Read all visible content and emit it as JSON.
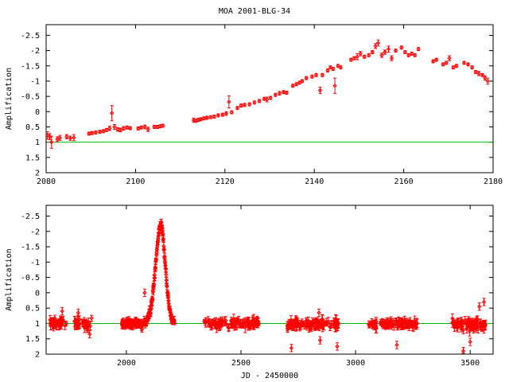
{
  "figure": {
    "title": "MOA 2001-BLG-34"
  },
  "colors": {
    "data": "#ff0000",
    "baseline": "#00bb00",
    "axes": "#000000"
  },
  "chart_data": [
    {
      "type": "scatter",
      "title": "MOA 2001-BLG-34",
      "xlabel": "",
      "ylabel": "Amplification",
      "xlim": [
        2080,
        2180
      ],
      "ylim": [
        2,
        -2.85
      ],
      "y_inverted": true,
      "xticks": [
        2080,
        2100,
        2120,
        2140,
        2160,
        2180
      ],
      "xtick_labels": [
        "2080",
        "2100",
        "2120",
        "2140",
        "2160",
        "2180"
      ],
      "yticks": [
        -2.5,
        -2,
        -1.5,
        -1,
        -0.5,
        0,
        0.5,
        1,
        1.5,
        2
      ],
      "ytick_labels": [
        "-2.5",
        "-2",
        "-1.5",
        "-1",
        "-0.5",
        "0",
        "0.5",
        "1",
        "1.5",
        "2"
      ],
      "baseline": 1,
      "grid": false,
      "series": [
        {
          "x": [
            2080.3,
            2080.8,
            2081.2,
            2082.5,
            2083.1,
            2084.6,
            2085.4,
            2086.2,
            2089.6,
            2090.3,
            2091.1,
            2092.0,
            2092.8,
            2093.5,
            2094.2,
            2094.7,
            2095.3,
            2096.0,
            2096.6,
            2097.3,
            2098.1,
            2098.8,
            2100.6,
            2101.3,
            2102.1,
            2102.8,
            2104.2,
            2104.9,
            2105.5,
            2106.1,
            2113.0,
            2113.5,
            2114.0,
            2114.6,
            2115.3,
            2116.0,
            2116.8,
            2117.6,
            2118.5,
            2119.5,
            2120.3,
            2120.9,
            2121.5,
            2122.8,
            2123.6,
            2124.4,
            2125.5,
            2126.6,
            2127.7,
            2128.8,
            2129.4,
            2130.2,
            2131.3,
            2132.2,
            2133.1,
            2133.8,
            2135.2,
            2136.0,
            2136.7,
            2137.3,
            2138.2,
            2139.5,
            2140.4,
            2141.3,
            2141.8,
            2143.0,
            2143.6,
            2144.2,
            2144.6,
            2145.3,
            2145.9,
            2148.2,
            2148.9,
            2149.6,
            2150.3,
            2151.2,
            2152.2,
            2153.0,
            2153.7,
            2154.3,
            2155.1,
            2155.8,
            2156.6,
            2157.3,
            2158.2,
            2159.5,
            2160.3,
            2161.1,
            2161.8,
            2162.5,
            2163.3,
            2166.6,
            2167.3,
            2168.8,
            2169.5,
            2170.2,
            2171.1,
            2171.8,
            2173.5,
            2174.4,
            2175.3,
            2176.1,
            2176.8,
            2177.6,
            2178.2,
            2178.8
          ],
          "y": [
            0.78,
            0.82,
            1.0,
            0.9,
            0.86,
            0.82,
            0.87,
            0.85,
            0.72,
            0.7,
            0.68,
            0.66,
            0.64,
            0.6,
            0.55,
            0.05,
            0.5,
            0.58,
            0.6,
            0.55,
            0.52,
            0.54,
            0.55,
            0.52,
            0.5,
            0.58,
            0.5,
            0.5,
            0.48,
            0.46,
            0.28,
            0.3,
            0.27,
            0.25,
            0.22,
            0.2,
            0.18,
            0.16,
            0.12,
            0.1,
            0.06,
            -0.32,
            0.02,
            -0.12,
            -0.2,
            -0.22,
            -0.24,
            -0.3,
            -0.35,
            -0.42,
            -0.4,
            -0.45,
            -0.55,
            -0.6,
            -0.64,
            -0.62,
            -0.85,
            -0.9,
            -0.95,
            -1.0,
            -1.1,
            -1.15,
            -1.2,
            -0.7,
            -1.2,
            -1.35,
            -1.45,
            -1.4,
            -0.85,
            -1.5,
            -1.45,
            -1.7,
            -1.75,
            -1.8,
            -1.9,
            -1.8,
            -1.85,
            -1.95,
            -2.15,
            -2.25,
            -1.85,
            -1.95,
            -2.05,
            -1.75,
            -2.0,
            -2.1,
            -1.95,
            -1.85,
            -1.9,
            -1.85,
            -2.05,
            -1.65,
            -1.7,
            -1.55,
            -1.6,
            -1.75,
            -1.45,
            -1.5,
            -1.6,
            -1.55,
            -1.45,
            -1.3,
            -1.25,
            -1.2,
            -1.1,
            -1.0
          ],
          "err": [
            0.12,
            0.1,
            0.2,
            0.08,
            0.08,
            0.07,
            0.07,
            0.1,
            0.05,
            0.05,
            0.05,
            0.05,
            0.05,
            0.05,
            0.07,
            0.25,
            0.08,
            0.06,
            0.06,
            0.06,
            0.05,
            0.05,
            0.05,
            0.05,
            0.06,
            0.07,
            0.05,
            0.05,
            0.05,
            0.05,
            0.07,
            0.05,
            0.05,
            0.05,
            0.05,
            0.05,
            0.05,
            0.05,
            0.05,
            0.05,
            0.06,
            0.2,
            0.05,
            0.05,
            0.05,
            0.05,
            0.05,
            0.05,
            0.05,
            0.05,
            0.08,
            0.05,
            0.05,
            0.06,
            0.05,
            0.05,
            0.05,
            0.05,
            0.05,
            0.05,
            0.05,
            0.05,
            0.05,
            0.1,
            0.05,
            0.05,
            0.05,
            0.05,
            0.25,
            0.05,
            0.05,
            0.05,
            0.05,
            0.1,
            0.07,
            0.05,
            0.05,
            0.05,
            0.08,
            0.1,
            0.07,
            0.07,
            0.1,
            0.08,
            0.05,
            0.05,
            0.05,
            0.05,
            0.05,
            0.05,
            0.05,
            0.05,
            0.05,
            0.05,
            0.05,
            0.08,
            0.05,
            0.05,
            0.05,
            0.05,
            0.05,
            0.05,
            0.07,
            0.05,
            0.07,
            0.1
          ]
        }
      ]
    },
    {
      "type": "scatter",
      "title": "",
      "xlabel": "JD - 2450000",
      "ylabel": "Amplification",
      "xlim": [
        1650,
        3600
      ],
      "ylim": [
        2,
        -2.85
      ],
      "y_inverted": true,
      "xticks": [
        2000,
        2500,
        3000,
        3500
      ],
      "xtick_labels": [
        "2000",
        "2500",
        "3000",
        "3500"
      ],
      "yticks": [
        -2.5,
        -2,
        -1.5,
        -1,
        -0.5,
        0,
        0.5,
        1,
        1.5,
        2
      ],
      "ytick_labels": [
        "-2.5",
        "-2",
        "-1.5",
        "-1",
        "-0.5",
        "0",
        "0.5",
        "1",
        "1.5",
        "2"
      ],
      "baseline": 1,
      "grid": false,
      "seasons": [
        {
          "x_range": [
            1660,
            1740
          ],
          "points": 40,
          "center": 1.0,
          "scatter": 0.12
        },
        {
          "x_range": [
            1770,
            1850
          ],
          "points": 35,
          "center": 1.02,
          "scatter": 0.14
        },
        {
          "x_range": [
            2340,
            2580
          ],
          "points": 110,
          "center": 1.0,
          "scatter": 0.1
        },
        {
          "x_range": [
            2700,
            2930
          ],
          "points": 110,
          "center": 1.02,
          "scatter": 0.12
        },
        {
          "x_range": [
            3050,
            3270
          ],
          "points": 100,
          "center": 1.01,
          "scatter": 0.1
        },
        {
          "x_range": [
            3420,
            3570
          ],
          "points": 80,
          "center": 1.03,
          "scatter": 0.15
        }
      ],
      "event": {
        "x_range": [
          1980,
          2210
        ],
        "points": 220,
        "baseline": 1.0,
        "peak_x": 2150,
        "peak_y": -2.2,
        "rise_width": 40,
        "fall_width": 35,
        "scatter": 0.06
      },
      "outliers": [
        {
          "x": 1720,
          "y": 0.6
        },
        {
          "x": 1790,
          "y": 0.65
        },
        {
          "x": 1840,
          "y": 1.35
        },
        {
          "x": 2080,
          "y": 0.0
        },
        {
          "x": 2100,
          "y": 0.55
        },
        {
          "x": 2720,
          "y": 1.8
        },
        {
          "x": 2840,
          "y": 0.65
        },
        {
          "x": 2845,
          "y": 1.55
        },
        {
          "x": 2920,
          "y": 1.75
        },
        {
          "x": 3180,
          "y": 1.7
        },
        {
          "x": 3540,
          "y": 0.45
        },
        {
          "x": 3560,
          "y": 0.3
        },
        {
          "x": 3470,
          "y": 1.9
        },
        {
          "x": 3500,
          "y": 1.6
        }
      ]
    }
  ]
}
